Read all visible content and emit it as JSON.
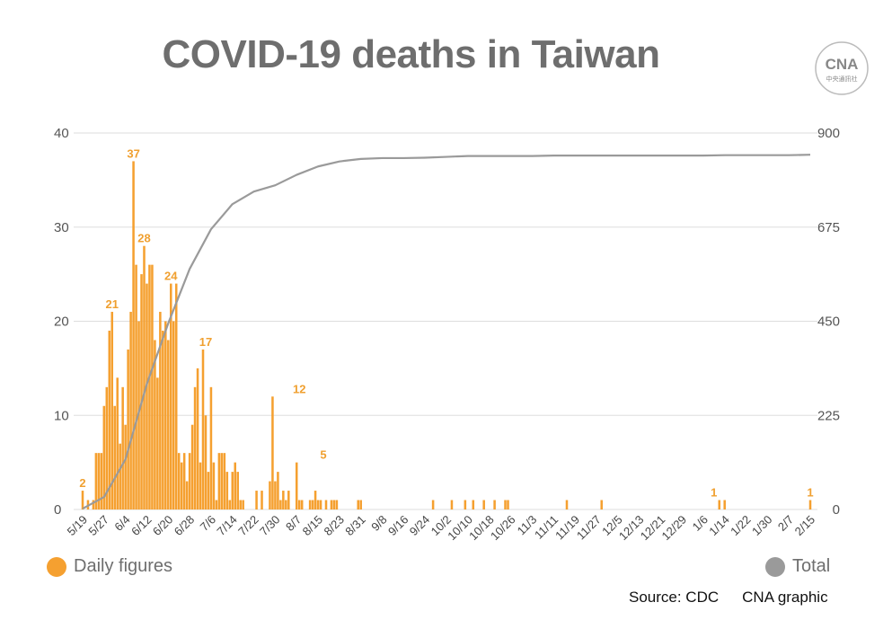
{
  "header": {
    "logo_text": "CNA",
    "logo_subtext": "中央通訊社"
  },
  "legend": {
    "daily": "Daily figures",
    "total": "Total"
  },
  "footer": {
    "source": "Source: CDC",
    "credit": "CNA graphic"
  },
  "chart_data": {
    "type": "bar",
    "title": "COVID-19 deaths in Taiwan",
    "colors": {
      "daily": "#f5a030",
      "total": "#9a9a9a",
      "grid": "#dddddd"
    },
    "grid": true,
    "legend_placement": "bottom",
    "y_left": {
      "ticks": [
        0,
        10,
        20,
        30,
        40
      ],
      "ylim": [
        0,
        40
      ]
    },
    "y_right": {
      "ticks": [
        0,
        225,
        450,
        675,
        900
      ],
      "ylim": [
        0,
        900
      ]
    },
    "x_tick_labels": [
      "5/19",
      "5/27",
      "6/4",
      "6/12",
      "6/20",
      "6/28",
      "7/6",
      "7/14",
      "7/22",
      "7/30",
      "8/7",
      "8/15",
      "8/23",
      "8/31",
      "9/8",
      "9/16",
      "9/24",
      "10/2",
      "10/10",
      "10/18",
      "10/26",
      "11/3",
      "11/11",
      "11/19",
      "11/27",
      "12/5",
      "12/13",
      "12/21",
      "12/29",
      "1/6",
      "1/14",
      "1/22",
      "1/30",
      "2/7",
      "2/15"
    ],
    "series": [
      {
        "name": "Daily figures",
        "type": "bar",
        "axis": "left",
        "start_label": "5/19",
        "values": [
          2,
          0,
          1,
          0,
          1,
          6,
          6,
          6,
          11,
          13,
          19,
          21,
          11,
          14,
          7,
          13,
          9,
          17,
          21,
          37,
          26,
          20,
          25,
          28,
          24,
          26,
          26,
          18,
          14,
          21,
          19,
          20,
          18,
          24,
          20,
          24,
          6,
          5,
          6,
          3,
          6,
          9,
          13,
          15,
          5,
          17,
          10,
          4,
          13,
          5,
          1,
          6,
          6,
          6,
          4,
          1,
          4,
          5,
          4,
          1,
          1,
          0,
          0,
          0,
          0,
          2,
          0,
          2,
          0,
          0,
          3,
          12,
          3,
          4,
          1,
          2,
          1,
          2,
          0,
          0,
          5,
          1,
          1,
          0,
          0,
          1,
          1,
          2,
          1,
          1,
          0,
          1,
          0,
          1,
          1,
          1,
          0,
          0,
          0,
          0,
          0,
          0,
          0,
          1,
          1,
          0,
          0,
          0,
          0,
          0,
          0,
          0,
          0,
          0,
          0,
          0,
          0,
          0,
          0,
          0,
          0,
          0,
          0,
          0,
          0,
          0,
          0,
          0,
          0,
          0,
          0,
          1,
          0,
          0,
          0,
          0,
          0,
          0,
          1,
          0,
          0,
          0,
          0,
          1,
          0,
          0,
          1,
          0,
          0,
          0,
          1,
          0,
          0,
          0,
          1,
          0,
          0,
          0,
          1,
          1,
          0,
          0,
          0,
          0,
          0,
          0,
          0,
          0,
          0,
          0,
          0,
          0,
          0,
          0,
          0,
          0,
          0,
          0,
          0,
          0,
          0,
          1,
          0,
          0,
          0,
          0,
          0,
          0,
          0,
          0,
          0,
          0,
          0,
          0,
          1,
          0,
          0,
          0,
          0,
          0,
          0,
          0,
          0,
          0,
          0,
          0,
          0,
          0,
          0,
          0,
          0,
          0,
          0,
          0,
          0,
          0,
          0,
          0,
          0,
          0,
          0,
          0,
          0,
          0,
          0,
          0,
          0,
          0,
          0,
          0,
          0,
          0,
          0,
          0,
          0,
          0,
          0,
          0,
          1,
          0,
          1,
          0,
          0,
          0,
          0,
          0,
          0,
          0,
          0,
          0,
          0,
          0,
          0,
          0,
          0,
          0,
          0,
          0,
          0,
          0,
          0,
          0,
          0,
          0,
          0,
          0,
          0,
          0,
          0,
          0,
          0,
          0,
          1,
          0,
          0,
          0,
          0,
          0,
          0,
          0,
          0,
          0,
          0,
          0,
          0,
          0,
          0,
          0,
          0,
          0,
          0,
          0,
          0,
          0,
          0,
          0,
          0,
          0,
          0,
          0,
          0,
          0,
          0,
          0,
          0,
          0,
          0,
          0,
          0,
          0,
          1
        ]
      },
      {
        "name": "Total",
        "type": "line",
        "axis": "right",
        "x_labels": [
          "5/19",
          "5/27",
          "6/4",
          "6/12",
          "6/20",
          "6/28",
          "7/6",
          "7/14",
          "7/22",
          "7/30",
          "8/7",
          "8/15",
          "8/23",
          "8/31",
          "9/8",
          "9/16",
          "9/24",
          "10/2",
          "10/10",
          "10/18",
          "10/26",
          "11/3",
          "11/11",
          "11/19",
          "11/27",
          "12/5",
          "12/13",
          "12/21",
          "12/29",
          "1/6",
          "1/14",
          "1/22",
          "1/30",
          "2/7",
          "2/15"
        ],
        "values": [
          2,
          30,
          120,
          300,
          445,
          575,
          670,
          730,
          760,
          775,
          800,
          820,
          832,
          838,
          840,
          840,
          841,
          843,
          845,
          845,
          845,
          845,
          846,
          846,
          846,
          846,
          846,
          846,
          846,
          846,
          847,
          847,
          847,
          847,
          848
        ]
      }
    ],
    "annotations": [
      {
        "x": "5/19",
        "value": 2,
        "text": "2"
      },
      {
        "x": "5/30",
        "value": 21,
        "text": "21"
      },
      {
        "x": "6/7",
        "value": 37,
        "text": "37"
      },
      {
        "x": "6/11",
        "value": 28,
        "text": "28"
      },
      {
        "x": "6/21",
        "value": 24,
        "text": "24"
      },
      {
        "x": "7/4",
        "value": 17,
        "text": "17"
      },
      {
        "x": "8/8",
        "value": 12,
        "text": "12"
      },
      {
        "x": "8/17",
        "value": 5,
        "text": "5"
      },
      {
        "x": "1/10",
        "value": 1,
        "text": "1"
      },
      {
        "x": "2/15",
        "value": 1,
        "text": "1"
      }
    ]
  }
}
